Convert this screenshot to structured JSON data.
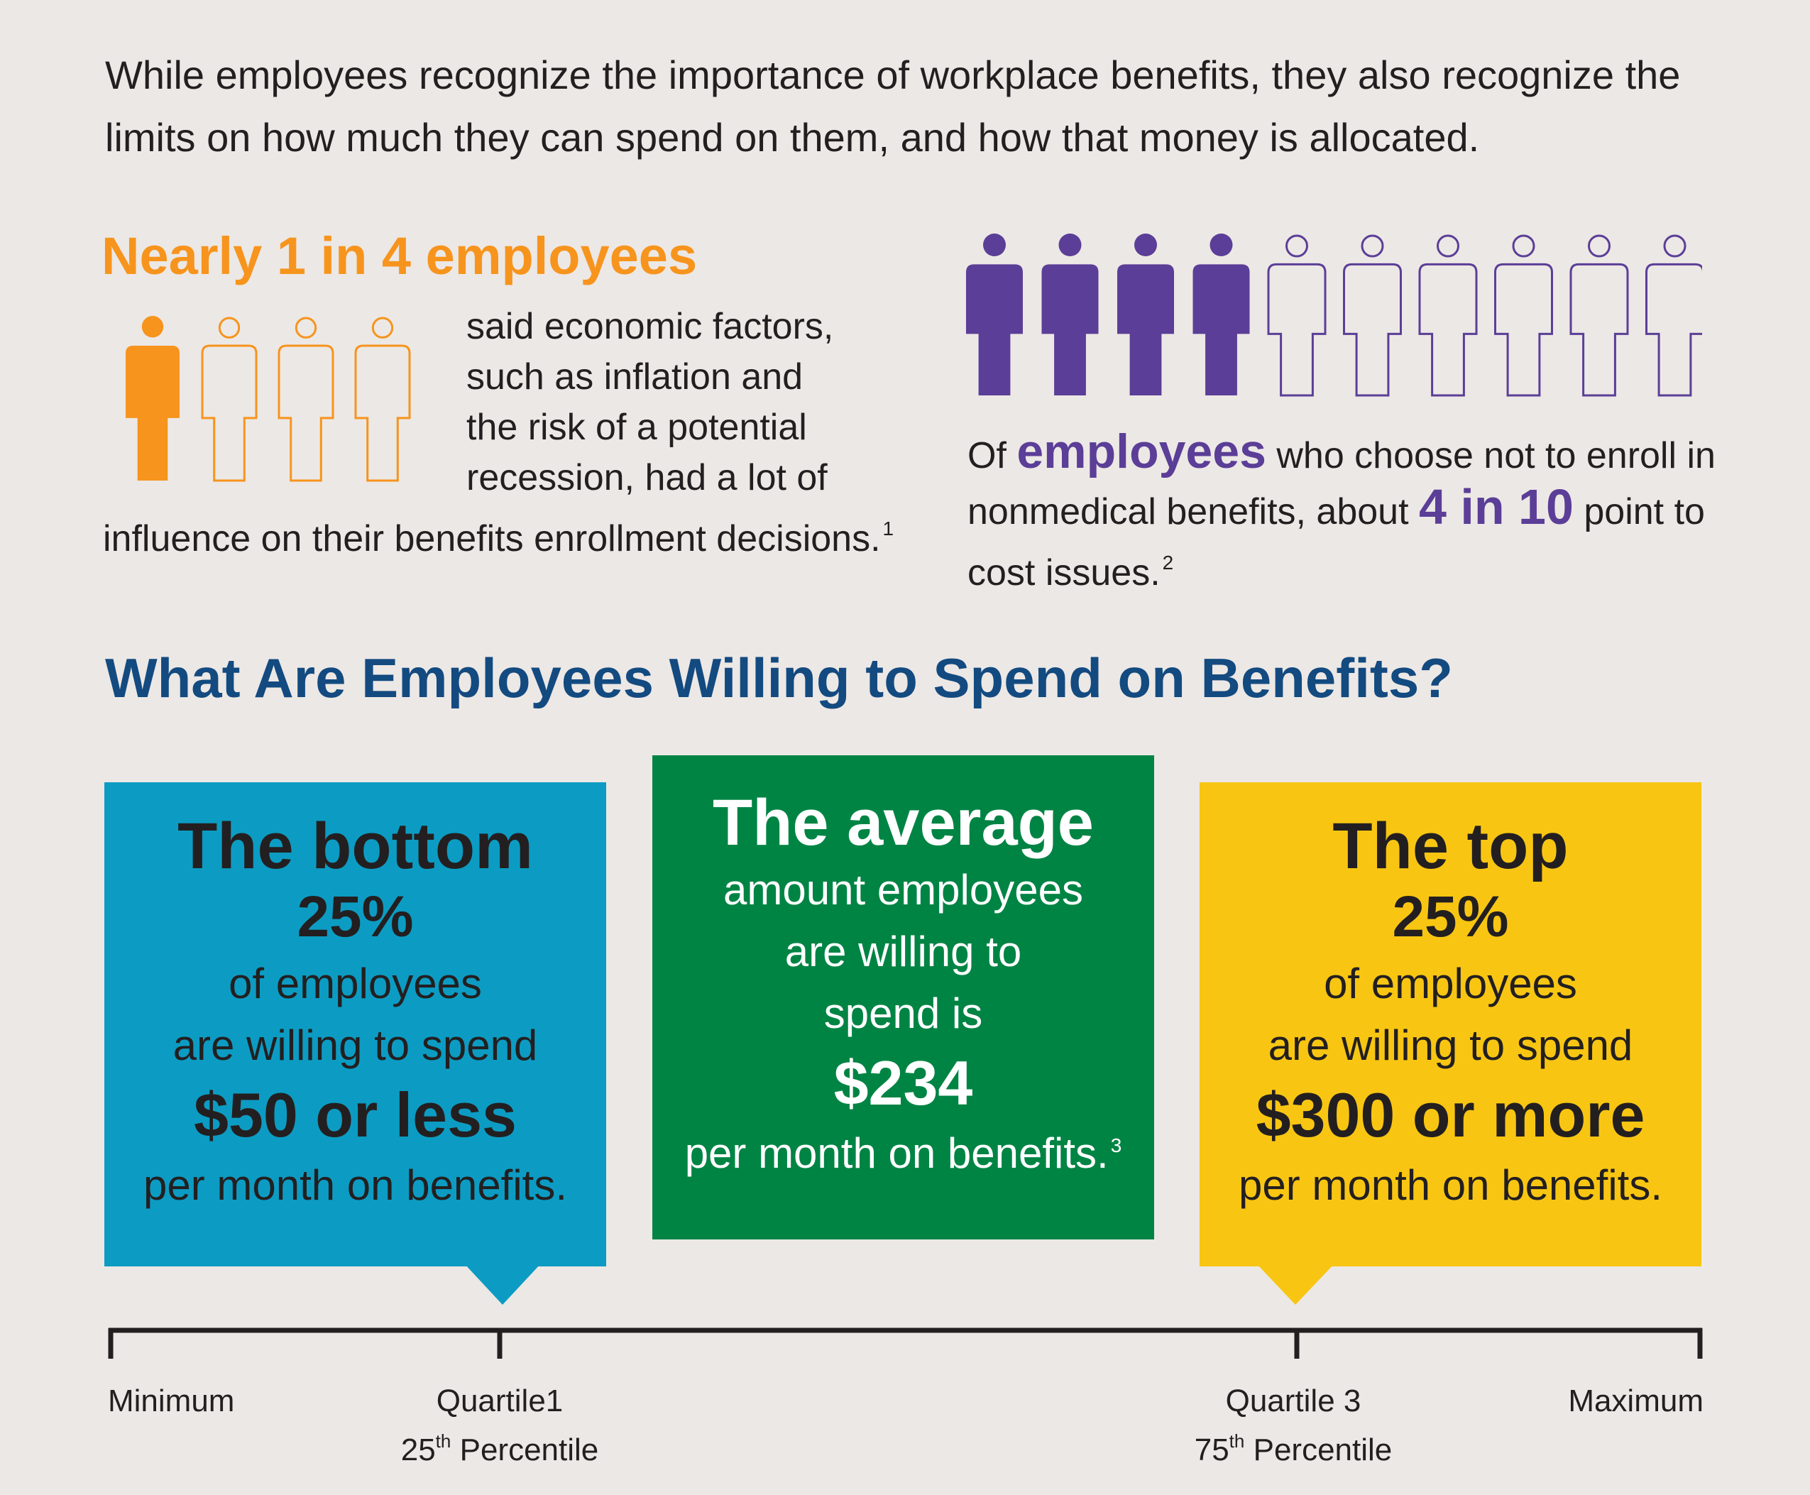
{
  "intro": "While employees recognize the importance of workplace benefits, they also recognize the limits on how much they can spend on them, and how that money is allocated.",
  "left_stat": {
    "headline": "Nearly 1 in 4 employees",
    "text_lines": [
      "said economic factors,",
      "such as inflation and",
      "the risk of a potential",
      "recession, had a lot of"
    ],
    "text_last": "influence on their benefits enrollment decisions.",
    "footnote": "1",
    "figures_filled": 1,
    "figures_total": 4,
    "color": "#f7941d"
  },
  "right_stat": {
    "prefix": "Of",
    "emphasis": "employees",
    "middle": "who choose not to enroll in nonmedical benefits, about",
    "number": "4 in 10",
    "suffix": "point to cost issues.",
    "footnote": "2",
    "figures_filled": 4,
    "figures_total": 10,
    "color": "#5b3e97"
  },
  "section_title": "What Are Employees Willing to Spend on Benefits?",
  "boxes": {
    "bottom": {
      "heading": "The bottom",
      "percent": "25%",
      "line1": "of employees",
      "line2": "are willing to spend",
      "amount": "$50 or less",
      "line3": "per month on benefits.",
      "color": "#0c9cc3"
    },
    "average": {
      "heading": "The average",
      "line1": "amount employees",
      "line2": "are willing to",
      "line3": "spend is",
      "amount": "$234",
      "line4": "per month on benefits.",
      "footnote": "3",
      "color": "#008444"
    },
    "top": {
      "heading": "The top",
      "percent": "25%",
      "line1": "of employees",
      "line2": "are willing to spend",
      "amount": "$300 or more",
      "line3": "per month on benefits.",
      "color": "#f8c612"
    }
  },
  "axis": {
    "minimum": "Minimum",
    "q1_title": "Quartile1",
    "q1_num": "25",
    "q1_sup": "th",
    "q1_word": "Percentile",
    "q3_title": "Quartile 3",
    "q3_num": "75",
    "q3_sup": "th",
    "q3_word": "Percentile",
    "maximum": "Maximum"
  }
}
